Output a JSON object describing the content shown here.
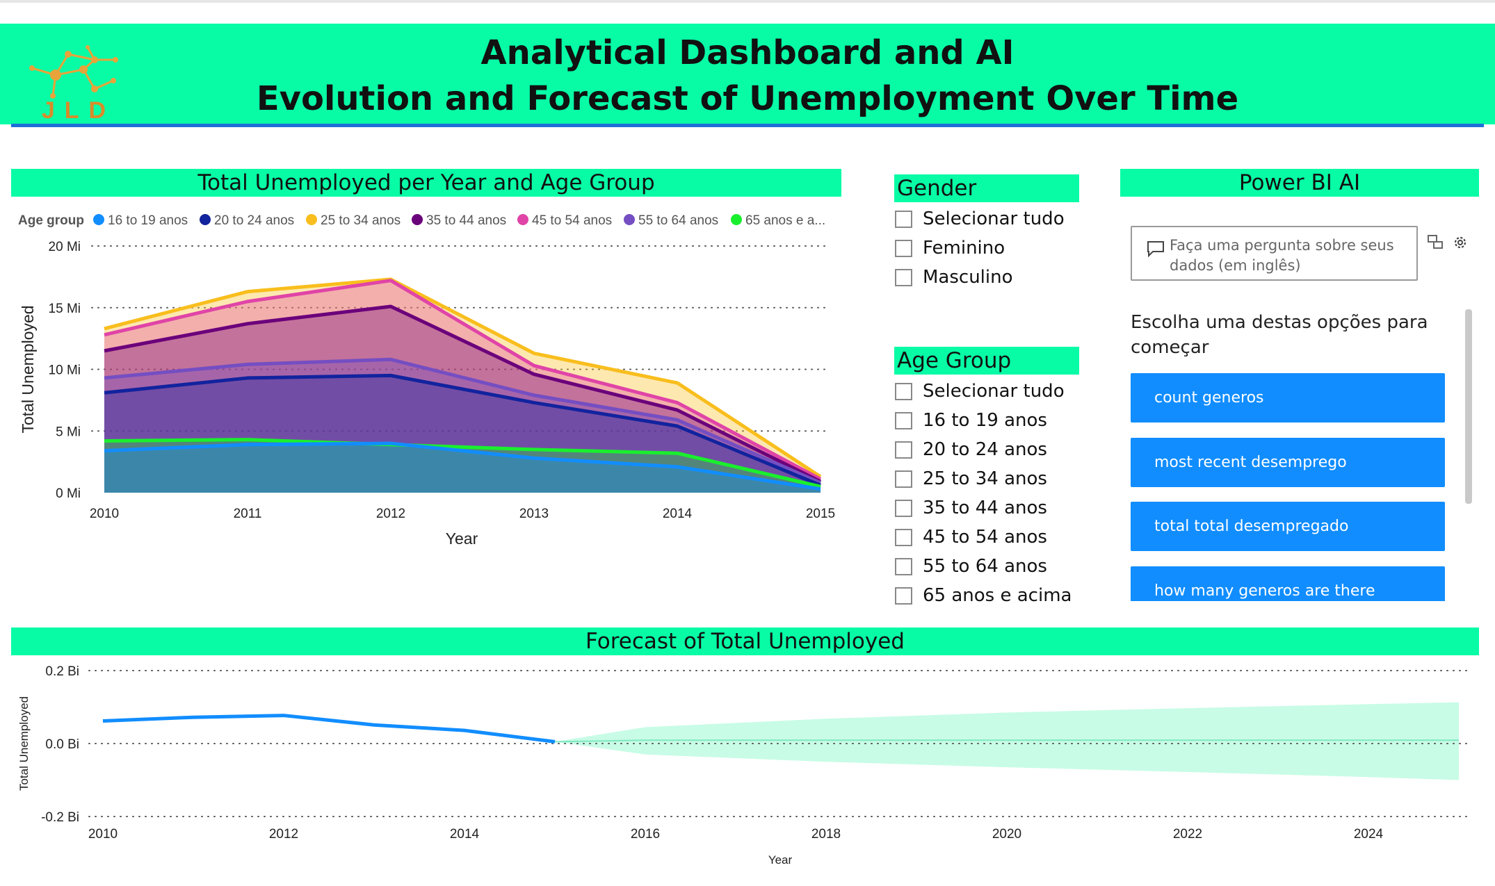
{
  "header": {
    "title_line1": "Analytical Dashboard and AI",
    "title_line2": "Evolution and Forecast of Unemployment Over Time",
    "logo_text": "JLD"
  },
  "area_panel": {
    "title": "Total Unemployed per Year and Age Group",
    "legend_label": "Age group"
  },
  "gender_slicer": {
    "title": "Gender",
    "items": [
      "Selecionar tudo",
      "Feminino",
      "Masculino"
    ]
  },
  "age_slicer": {
    "title": "Age Group",
    "items": [
      "Selecionar tudo",
      "16 to 19 anos",
      "20 to 24 anos",
      "25 to 34 anos",
      "35 to 44 anos",
      "45 to 54 anos",
      "55 to 64 anos",
      "65 anos e acima"
    ]
  },
  "qna": {
    "title": "Power BI AI",
    "placeholder": "Faça uma pergunta sobre seus dados (em inglês)",
    "intro": "Escolha uma destas opções para começar",
    "suggestions": [
      "count generos",
      "most recent desemprego",
      "total total desempregado",
      "how many generos are there"
    ]
  },
  "forecast_panel": {
    "title": "Forecast of Total Unemployed"
  },
  "chart_data": [
    {
      "type": "area",
      "title": "Total Unemployed per Year and Age Group",
      "xlabel": "Year",
      "ylabel": "Total Unemployed",
      "x": [
        2010,
        2011,
        2012,
        2013,
        2014,
        2015
      ],
      "xticks": [
        "2010",
        "2011",
        "2012",
        "2013",
        "2014",
        "2015"
      ],
      "yticks": [
        0,
        5,
        10,
        15,
        20
      ],
      "ytick_labels": [
        "0 Mi",
        "5 Mi",
        "10 Mi",
        "15 Mi",
        "20 Mi"
      ],
      "ylim": [
        0,
        20
      ],
      "unit": "Mi",
      "grid": true,
      "legend_position": "top-left",
      "series": [
        {
          "name": "16 to 19 anos",
          "color": "#118DFF",
          "values": [
            3.4,
            3.9,
            4.0,
            2.8,
            2.1,
            0.3
          ]
        },
        {
          "name": "20 to 24 anos",
          "color": "#12239E",
          "values": [
            8.1,
            9.3,
            9.5,
            7.3,
            5.4,
            0.6
          ]
        },
        {
          "name": "25 to 34 anos",
          "color": "#F9BE1D",
          "values": [
            13.3,
            16.3,
            17.3,
            11.3,
            8.9,
            1.3
          ]
        },
        {
          "name": "35 to 44 anos",
          "color": "#6B007B",
          "values": [
            11.5,
            13.7,
            15.1,
            9.6,
            6.7,
            0.9
          ]
        },
        {
          "name": "45 to 54 anos",
          "color": "#E044A7",
          "values": [
            12.8,
            15.5,
            17.2,
            10.3,
            7.3,
            1.1
          ]
        },
        {
          "name": "55 to 64 anos",
          "color": "#744EC2",
          "values": [
            9.3,
            10.4,
            10.8,
            7.9,
            5.9,
            0.8
          ]
        },
        {
          "name": "65 anos e acima",
          "color": "#1AEF2E",
          "values": [
            4.2,
            4.3,
            3.9,
            3.5,
            3.2,
            0.5
          ]
        }
      ],
      "legend_labels": [
        "16 to 19 anos",
        "20 to 24 anos",
        "25 to 34 anos",
        "35 to 44 anos",
        "45 to 54 anos",
        "55 to 64 anos",
        "65 anos e a..."
      ]
    },
    {
      "type": "line",
      "title": "Forecast of Total Unemployed",
      "xlabel": "Year",
      "ylabel": "Total Unemployed",
      "xlim": [
        2010,
        2025
      ],
      "xticks": [
        2010,
        2012,
        2014,
        2016,
        2018,
        2020,
        2022,
        2024
      ],
      "yticks": [
        -0.2,
        0.0,
        0.2
      ],
      "ytick_labels": [
        "-0.2 Bi",
        "0.0 Bi",
        "0.2 Bi"
      ],
      "ylim": [
        -0.2,
        0.2
      ],
      "unit": "Bi",
      "grid": true,
      "line_color": "#118DFF",
      "band_color": "#C8FCE6",
      "series": [
        {
          "x": [
            2010,
            2011,
            2012,
            2013,
            2014,
            2015
          ],
          "values": [
            0.062,
            0.072,
            0.077,
            0.051,
            0.036,
            0.005
          ]
        }
      ],
      "forecast": {
        "x": [
          2015,
          2016,
          2018,
          2020,
          2022,
          2024,
          2025
        ],
        "values": [
          0.005,
          0.009,
          0.009,
          0.009,
          0.009,
          0.009,
          0.009
        ],
        "upper": [
          0.005,
          0.045,
          0.068,
          0.085,
          0.097,
          0.108,
          0.113
        ],
        "lower": [
          0.005,
          -0.03,
          -0.05,
          -0.065,
          -0.078,
          -0.092,
          -0.1
        ]
      }
    }
  ]
}
